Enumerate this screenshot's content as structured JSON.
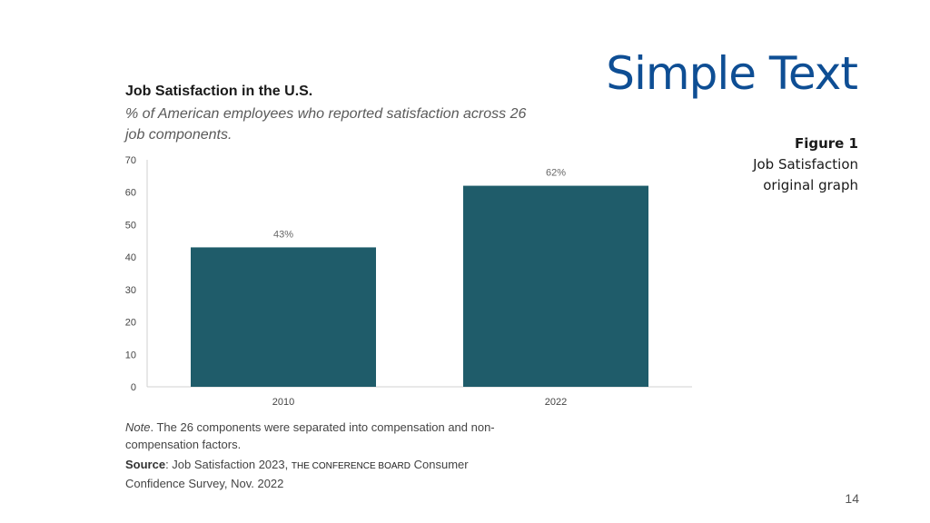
{
  "slide": {
    "title": "Simple Text",
    "page_number": "14"
  },
  "caption": {
    "figure_label": "Figure 1",
    "line1": "Job Satisfaction",
    "line2": "original graph"
  },
  "note": {
    "label": "Note",
    "text": ". The 26 components were separated into compensation and non-compensation factors."
  },
  "source": {
    "label": "Source",
    "text_before": ": Job Satisfaction 2023,",
    "org": "The Conference Board",
    "text_after": "Consumer Confidence Survey, Nov. 2022"
  },
  "colors": {
    "bar": "#1f5c6a",
    "title": "#0e4e94"
  },
  "chart_data": {
    "type": "bar",
    "title": "Job Satisfaction in the U.S.",
    "subtitle": "% of American employees who reported satisfaction across 26 job components.",
    "categories": [
      "2010",
      "2022"
    ],
    "values": [
      43,
      62
    ],
    "data_labels": [
      "43%",
      "62%"
    ],
    "ylim": [
      0,
      70
    ],
    "yticks": [
      0,
      10,
      20,
      30,
      40,
      50,
      60,
      70
    ],
    "xlabel": "",
    "ylabel": "",
    "grid": false
  }
}
